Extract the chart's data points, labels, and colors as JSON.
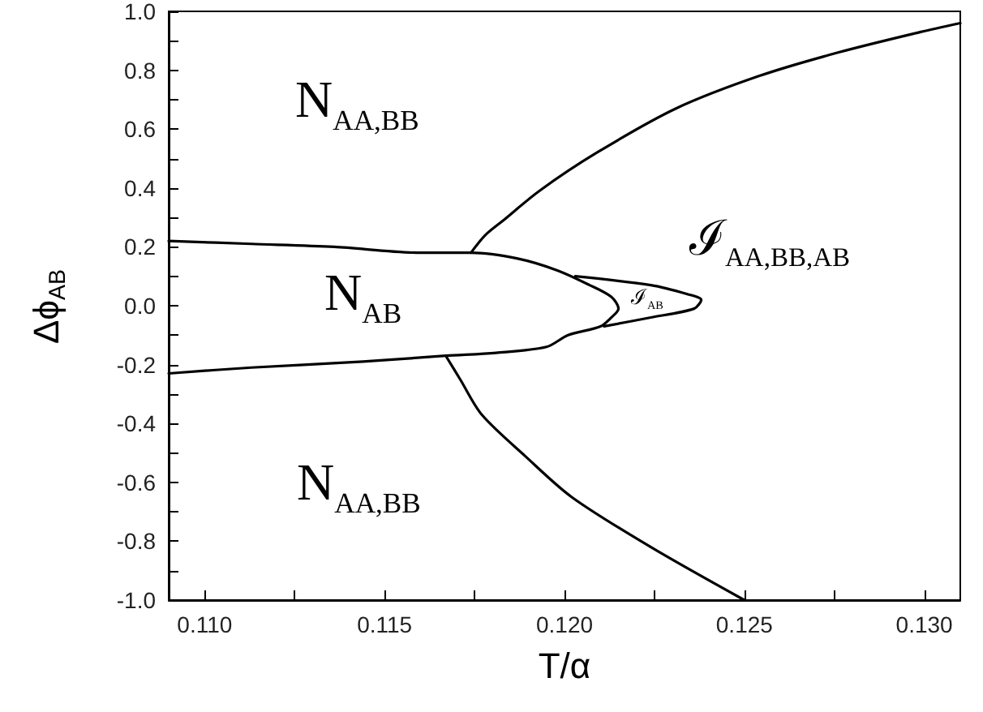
{
  "chart_data": {
    "type": "line",
    "xlabel": "T/α",
    "ylabel": "Δϕ$_{AB}$",
    "xlim": [
      0.109,
      0.131
    ],
    "ylim": [
      -1.0,
      1.0
    ],
    "xticks": [
      {
        "value": 0.11,
        "label": "0.110"
      },
      {
        "value": 0.1125,
        "label": null
      },
      {
        "value": 0.115,
        "label": "0.115"
      },
      {
        "value": 0.1175,
        "label": null
      },
      {
        "value": 0.12,
        "label": "0.120"
      },
      {
        "value": 0.1225,
        "label": null
      },
      {
        "value": 0.125,
        "label": "0.125"
      },
      {
        "value": 0.1275,
        "label": null
      },
      {
        "value": 0.13,
        "label": "0.130"
      }
    ],
    "yticks": [
      {
        "value": -1.0,
        "label": "-1.0"
      },
      {
        "value": -0.9,
        "label": null
      },
      {
        "value": -0.8,
        "label": "-0.8"
      },
      {
        "value": -0.7,
        "label": null
      },
      {
        "value": -0.6,
        "label": "-0.6"
      },
      {
        "value": -0.5,
        "label": null
      },
      {
        "value": -0.4,
        "label": "-0.4"
      },
      {
        "value": -0.3,
        "label": null
      },
      {
        "value": -0.2,
        "label": "-0.2"
      },
      {
        "value": -0.1,
        "label": null
      },
      {
        "value": 0.0,
        "label": "0.0"
      },
      {
        "value": 0.1,
        "label": null
      },
      {
        "value": 0.2,
        "label": "0.2"
      },
      {
        "value": 0.3,
        "label": null
      },
      {
        "value": 0.4,
        "label": "0.4"
      },
      {
        "value": 0.5,
        "label": null
      },
      {
        "value": 0.6,
        "label": "0.6"
      },
      {
        "value": 0.7,
        "label": null
      },
      {
        "value": 0.8,
        "label": "0.8"
      },
      {
        "value": 0.9,
        "label": null
      },
      {
        "value": 1.0,
        "label": "1.0"
      }
    ],
    "grid": false,
    "marker": "none",
    "line_style": "solid",
    "series": [
      {
        "color": "#000000",
        "x": [
          0.109,
          0.1113,
          0.1136,
          0.116,
          0.1174,
          0.1187,
          0.1198,
          0.1207,
          0.1213,
          0.1215,
          0.1213,
          0.121,
          0.1201,
          0.1195,
          0.1181,
          0.1167,
          0.1144,
          0.1113,
          0.109
        ],
        "values": [
          0.22,
          0.21,
          0.2,
          0.18,
          0.18,
          0.16,
          0.12,
          0.07,
          0.03,
          -0.01,
          -0.04,
          -0.07,
          -0.1,
          -0.14,
          -0.16,
          -0.17,
          -0.19,
          -0.21,
          -0.23
        ]
      },
      {
        "color": "#000000",
        "x": [
          0.1174,
          0.1178,
          0.1183,
          0.1193,
          0.1209,
          0.1231,
          0.1254,
          0.1276,
          0.1299,
          0.131
        ],
        "values": [
          0.18,
          0.24,
          0.29,
          0.39,
          0.52,
          0.67,
          0.78,
          0.86,
          0.93,
          0.96
        ]
      },
      {
        "color": "#000000",
        "x": [
          0.1167,
          0.1171,
          0.1177,
          0.1189,
          0.1202,
          0.1224,
          0.125
        ],
        "values": [
          -0.17,
          -0.25,
          -0.37,
          -0.51,
          -0.65,
          -0.82,
          -1.0
        ]
      },
      {
        "color": "#000000",
        "x": [
          0.1203,
          0.1224,
          0.1234,
          0.1238,
          0.1236,
          0.1224,
          0.1211
        ],
        "values": [
          0.1,
          0.07,
          0.04,
          0.02,
          -0.01,
          -0.04,
          -0.07
        ]
      }
    ],
    "annotations": [
      "N$_{AA,BB}$",
      "N$_{AB}$",
      "ℐ$_{AA,BB,AB}$",
      "ℐ$_{AB}$",
      "N$_{AA,BB}$"
    ]
  }
}
